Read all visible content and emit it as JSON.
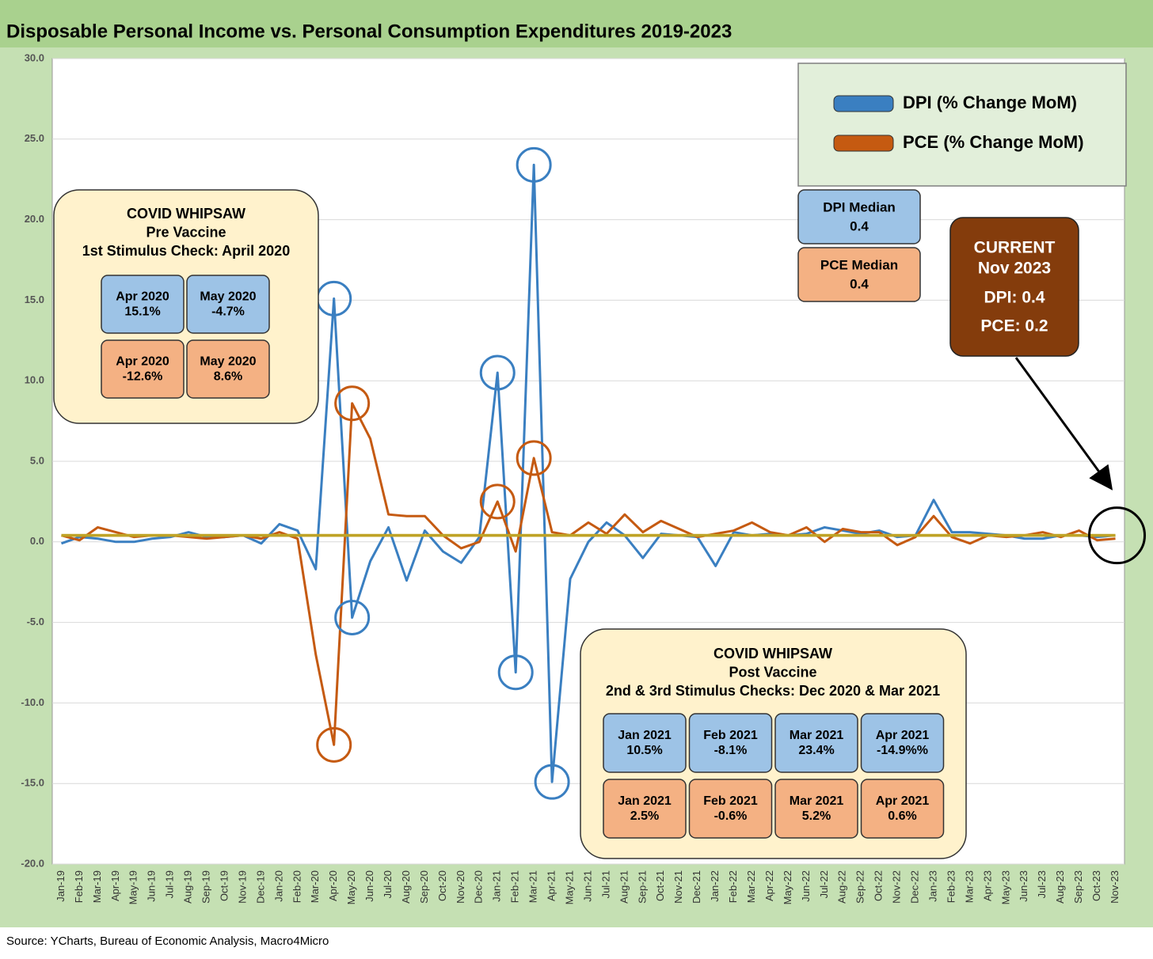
{
  "chart_data": {
    "type": "line",
    "title": "Disposable Personal Income vs. Personal Consumption Expenditures 2019-2023",
    "source": "Source: YCharts, Bureau of Economic Analysis, Macro4Micro",
    "categories": [
      "Jan-19",
      "Feb-19",
      "Mar-19",
      "Apr-19",
      "May-19",
      "Jun-19",
      "Jul-19",
      "Aug-19",
      "Sep-19",
      "Oct-19",
      "Nov-19",
      "Dec-19",
      "Jan-20",
      "Feb-20",
      "Mar-20",
      "Apr-20",
      "May-20",
      "Jun-20",
      "Jul-20",
      "Aug-20",
      "Sep-20",
      "Oct-20",
      "Nov-20",
      "Dec-20",
      "Jan-21",
      "Feb-21",
      "Mar-21",
      "Apr-21",
      "May-21",
      "Jun-21",
      "Jul-21",
      "Aug-21",
      "Sep-21",
      "Oct-21",
      "Nov-21",
      "Dec-21",
      "Jan-22",
      "Feb-22",
      "Mar-22",
      "Apr-22",
      "May-22",
      "Jun-22",
      "Jul-22",
      "Aug-22",
      "Sep-22",
      "Oct-22",
      "Nov-22",
      "Dec-22",
      "Jan-23",
      "Feb-23",
      "Mar-23",
      "Apr-23",
      "May-23",
      "Jun-23",
      "Jul-23",
      "Aug-23",
      "Sep-23",
      "Oct-23",
      "Nov-23"
    ],
    "series": [
      {
        "name": "DPI (% Change MoM)",
        "color": "#3a7fc1",
        "values": [
          -0.1,
          0.3,
          0.2,
          0.0,
          0.0,
          0.2,
          0.3,
          0.6,
          0.3,
          0.3,
          0.4,
          -0.1,
          1.1,
          0.7,
          -1.7,
          15.1,
          -4.7,
          -1.2,
          0.9,
          -2.4,
          0.7,
          -0.6,
          -1.3,
          0.3,
          10.5,
          -8.1,
          23.4,
          -14.9,
          -2.3,
          0.0,
          1.2,
          0.4,
          -1.0,
          0.5,
          0.4,
          0.3,
          -1.5,
          0.6,
          0.4,
          0.5,
          0.4,
          0.5,
          0.9,
          0.7,
          0.5,
          0.7,
          0.3,
          0.4,
          2.6,
          0.6,
          0.6,
          0.5,
          0.4,
          0.2,
          0.2,
          0.4,
          0.4,
          0.3,
          0.4
        ]
      },
      {
        "name": "PCE (% Change MoM)",
        "color": "#c55a11",
        "values": [
          0.4,
          0.1,
          0.9,
          0.6,
          0.3,
          0.4,
          0.4,
          0.3,
          0.2,
          0.3,
          0.4,
          0.2,
          0.6,
          0.2,
          -7.0,
          -12.6,
          8.6,
          6.4,
          1.7,
          1.6,
          1.6,
          0.4,
          -0.4,
          0.0,
          2.5,
          -0.6,
          5.2,
          0.6,
          0.4,
          1.2,
          0.5,
          1.7,
          0.6,
          1.3,
          0.8,
          0.3,
          0.5,
          0.7,
          1.2,
          0.6,
          0.4,
          0.9,
          0.0,
          0.8,
          0.6,
          0.6,
          -0.2,
          0.3,
          1.6,
          0.3,
          -0.1,
          0.4,
          0.3,
          0.4,
          0.6,
          0.3,
          0.7,
          0.1,
          0.2
        ]
      }
    ],
    "medians": [
      {
        "label": "DPI Median",
        "value": 0.4,
        "color": "#bfa326"
      },
      {
        "label": "PCE Median",
        "value": 0.4,
        "color": "#bfa326"
      }
    ],
    "ylim": [
      -20,
      30
    ],
    "yticks": [
      {
        "value": -20,
        "label": "-20.0"
      },
      {
        "value": -15,
        "label": "-15.0"
      },
      {
        "value": -10,
        "label": "-10.0"
      },
      {
        "value": -5,
        "label": "-5.0"
      },
      {
        "value": 0,
        "label": "0.0"
      },
      {
        "value": 5,
        "label": "5.0"
      },
      {
        "value": 10,
        "label": "10.0"
      },
      {
        "value": 15,
        "label": "15.0"
      },
      {
        "value": 20,
        "label": "20.0"
      },
      {
        "value": 25,
        "label": "25.0"
      },
      {
        "value": 30,
        "label": "30.0"
      }
    ],
    "grid": true,
    "legend": "upper right",
    "annotations": {
      "pre": {
        "lines": [
          "COVID WHIPSAW",
          "Pre Vaccine",
          "1st Stimulus Check: April 2020"
        ],
        "dpi": [
          [
            "Apr 2020",
            "15.1%"
          ],
          [
            "May 2020",
            "-4.7%"
          ]
        ],
        "pce": [
          [
            "Apr 2020",
            "-12.6%"
          ],
          [
            "May 2020",
            "8.6%"
          ]
        ]
      },
      "post": {
        "lines": [
          "COVID WHIPSAW",
          "Post Vaccine",
          "2nd & 3rd Stimulus Checks: Dec 2020 & Mar 2021"
        ],
        "dpi": [
          [
            "Jan 2021",
            "10.5%"
          ],
          [
            "Feb 2021",
            "-8.1%"
          ],
          [
            "Mar 2021",
            "23.4%"
          ],
          [
            "Apr 2021",
            "-14.9%%"
          ]
        ],
        "pce": [
          [
            "Jan 2021",
            "2.5%"
          ],
          [
            "Feb 2021",
            "-0.6%"
          ],
          [
            "Mar 2021",
            "5.2%"
          ],
          [
            "Apr 2021",
            "0.6%"
          ]
        ]
      },
      "current": [
        "CURRENT",
        "Nov 2023",
        "DPI: 0.4",
        "PCE: 0.2"
      ]
    }
  }
}
